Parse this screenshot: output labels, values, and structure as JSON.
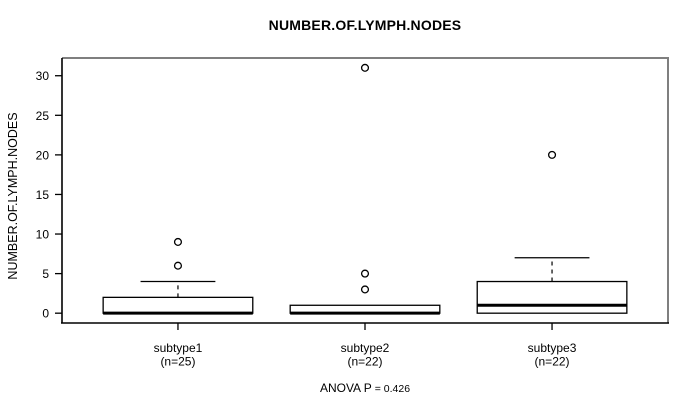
{
  "chart_data": {
    "type": "boxplot",
    "title": "NUMBER.OF.LYMPH.NODES",
    "ylabel": "NUMBER.OF.LYMPH.NODES",
    "annotation": {
      "prefix": "ANOVA P",
      "equality": "= 0.426"
    },
    "yticks": [
      0,
      5,
      10,
      15,
      20,
      25,
      30
    ],
    "ylim": [
      -1.24,
      32.24
    ],
    "xlim": [
      0.38,
      3.62
    ],
    "box_width": 0.8,
    "cap_width": 0.4,
    "grid": false,
    "groups": [
      {
        "label": "subtype1",
        "sublabel": "(n=25)",
        "q1": 0,
        "median": 0,
        "q3": 2,
        "whisker_low": 0,
        "whisker_high": 4,
        "outliers": [
          6,
          9
        ]
      },
      {
        "label": "subtype2",
        "sublabel": "(n=22)",
        "q1": 0,
        "median": 0,
        "q3": 1,
        "whisker_low": 0,
        "whisker_high": 1,
        "outliers": [
          3,
          5,
          31
        ]
      },
      {
        "label": "subtype3",
        "sublabel": "(n=22)",
        "q1": 0,
        "median": 1,
        "q3": 4,
        "whisker_low": 0,
        "whisker_high": 7,
        "outliers": [
          20
        ]
      }
    ],
    "colors": {
      "line": "#000000",
      "box_fill": "#ffffff",
      "frame_gray": "#7f7f7f"
    }
  }
}
